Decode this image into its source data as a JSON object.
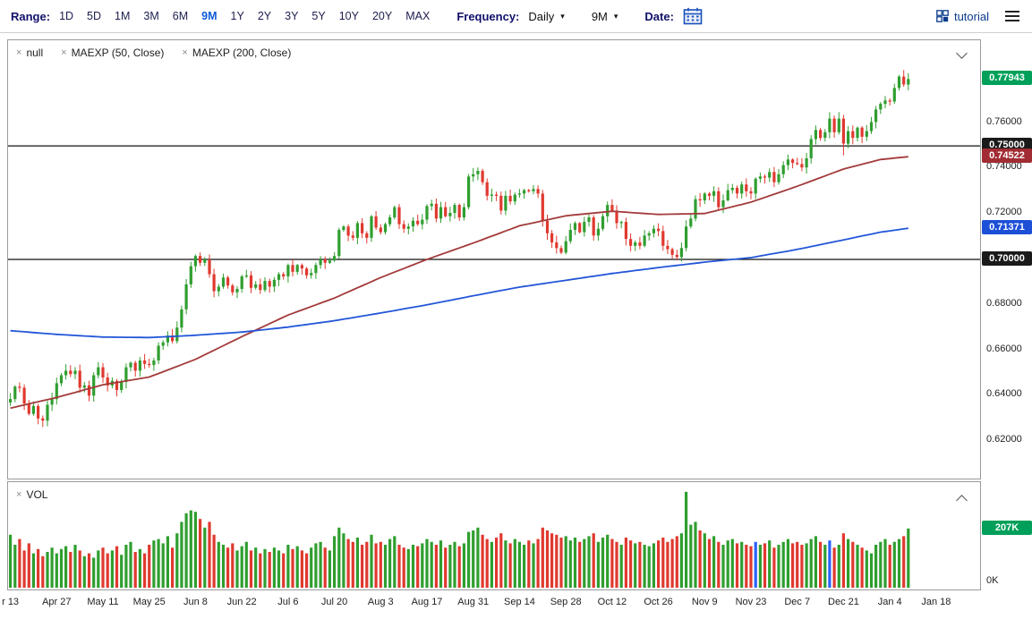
{
  "toolbar": {
    "range_label": "Range:",
    "range_options": [
      "1D",
      "5D",
      "1M",
      "3M",
      "6M",
      "9M",
      "1Y",
      "2Y",
      "3Y",
      "5Y",
      "10Y",
      "20Y",
      "MAX"
    ],
    "range_active": "9M",
    "frequency_label": "Frequency:",
    "frequency_value": "Daily",
    "period_value": "9M",
    "date_label": "Date:",
    "tutorial_label": "tutorial"
  },
  "price_panel": {
    "legend": [
      "null",
      "MAEXP (50, Close)",
      "MAEXP (200, Close)"
    ]
  },
  "volume_panel": {
    "legend": [
      "VOL"
    ],
    "zero_label": "0K",
    "last_volume_badge": "207K",
    "last_volume_badge_color": "#00a05a"
  },
  "axis": {
    "price_ticks": [
      "0.76000",
      "0.74000",
      "0.72000",
      "0.68000",
      "0.66000",
      "0.64000",
      "0.62000"
    ],
    "price_tick_values": [
      0.76,
      0.74,
      0.72,
      0.68,
      0.66,
      0.64,
      0.62
    ],
    "badges": [
      {
        "text": "0.77943",
        "value": 0.77943,
        "color": "#00a05a"
      },
      {
        "text": "0.75000",
        "value": 0.75,
        "color": "#1a1a1a"
      },
      {
        "text": "0.74522",
        "value": 0.74522,
        "color": "#a12c34"
      },
      {
        "text": "0.71371",
        "value": 0.71371,
        "color": "#1d4fd7"
      },
      {
        "text": "0.70000",
        "value": 0.7,
        "color": "#1a1a1a"
      }
    ]
  },
  "chart_data": {
    "type": "candlestick",
    "title": "",
    "xlabel": "",
    "ylabel": "",
    "x_tick_labels": [
      "r 13",
      "Apr 27",
      "May 11",
      "May 25",
      "Jun 8",
      "Jun 22",
      "Jul 6",
      "Jul 20",
      "Aug 3",
      "Aug 17",
      "Aug 31",
      "Sep 14",
      "Sep 28",
      "Oct 12",
      "Oct 26",
      "Nov 9",
      "Nov 23",
      "Dec 7",
      "Dec 21",
      "Jan 4",
      "Jan 18"
    ],
    "x_tick_slots": [
      0,
      10,
      20,
      30,
      40,
      50,
      60,
      70,
      80,
      90,
      100,
      110,
      120,
      130,
      140,
      150,
      160,
      170,
      180,
      190,
      200
    ],
    "total_slots": 210,
    "y_min": 0.6035,
    "y_max": 0.7965,
    "hlines": [
      0.75,
      0.7
    ],
    "last_price": 0.77943,
    "first_open": 0.637,
    "closes": [
      0.6385,
      0.644,
      0.6435,
      0.6365,
      0.632,
      0.6355,
      0.63,
      0.629,
      0.636,
      0.6385,
      0.6455,
      0.649,
      0.651,
      0.6495,
      0.651,
      0.6435,
      0.6445,
      0.64,
      0.649,
      0.6525,
      0.648,
      0.6445,
      0.6465,
      0.6425,
      0.646,
      0.6525,
      0.6545,
      0.651,
      0.6555,
      0.654,
      0.6535,
      0.6555,
      0.662,
      0.6635,
      0.6665,
      0.664,
      0.67,
      0.678,
      0.689,
      0.697,
      0.7015,
      0.6985,
      0.7,
      0.6935,
      0.686,
      0.688,
      0.692,
      0.6885,
      0.6855,
      0.687,
      0.6925,
      0.693,
      0.6875,
      0.689,
      0.6865,
      0.6905,
      0.688,
      0.691,
      0.6935,
      0.6925,
      0.6975,
      0.6945,
      0.6975,
      0.696,
      0.693,
      0.694,
      0.6975,
      0.7,
      0.6985,
      0.6995,
      0.7015,
      0.713,
      0.7145,
      0.7105,
      0.7095,
      0.716,
      0.7115,
      0.7095,
      0.719,
      0.714,
      0.712,
      0.7155,
      0.7185,
      0.723,
      0.7155,
      0.7135,
      0.7145,
      0.717,
      0.7155,
      0.7175,
      0.7235,
      0.7245,
      0.718,
      0.723,
      0.719,
      0.7205,
      0.724,
      0.7185,
      0.723,
      0.7365,
      0.7375,
      0.739,
      0.734,
      0.728,
      0.7285,
      0.728,
      0.7215,
      0.728,
      0.7255,
      0.7285,
      0.729,
      0.7305,
      0.73,
      0.731,
      0.729,
      0.717,
      0.7115,
      0.7075,
      0.705,
      0.703,
      0.708,
      0.713,
      0.716,
      0.712,
      0.7165,
      0.7185,
      0.7105,
      0.7135,
      0.719,
      0.724,
      0.7215,
      0.716,
      0.7165,
      0.709,
      0.706,
      0.7075,
      0.706,
      0.7105,
      0.7115,
      0.7135,
      0.7125,
      0.706,
      0.7045,
      0.702,
      0.701,
      0.705,
      0.7145,
      0.718,
      0.7265,
      0.726,
      0.729,
      0.728,
      0.73,
      0.723,
      0.726,
      0.7305,
      0.7315,
      0.729,
      0.733,
      0.73,
      0.729,
      0.7355,
      0.7365,
      0.736,
      0.7385,
      0.734,
      0.7375,
      0.7415,
      0.744,
      0.7425,
      0.742,
      0.7405,
      0.7445,
      0.753,
      0.757,
      0.7535,
      0.756,
      0.762,
      0.756,
      0.762,
      0.751,
      0.7565,
      0.7535,
      0.758,
      0.754,
      0.7565,
      0.7605,
      0.766,
      0.7685,
      0.77,
      0.7695,
      0.7755,
      0.7805,
      0.777,
      0.77943
    ],
    "volumes_k": [
      185,
      150,
      170,
      130,
      155,
      120,
      135,
      110,
      125,
      140,
      120,
      135,
      145,
      125,
      150,
      130,
      110,
      120,
      105,
      130,
      140,
      120,
      130,
      145,
      115,
      150,
      160,
      125,
      135,
      120,
      150,
      165,
      170,
      155,
      180,
      140,
      190,
      230,
      260,
      270,
      265,
      240,
      210,
      230,
      185,
      160,
      150,
      140,
      155,
      130,
      145,
      160,
      130,
      140,
      120,
      135,
      125,
      140,
      130,
      120,
      150,
      135,
      145,
      130,
      120,
      140,
      155,
      160,
      140,
      130,
      180,
      210,
      190,
      170,
      160,
      175,
      150,
      160,
      185,
      155,
      160,
      150,
      170,
      180,
      150,
      140,
      135,
      150,
      145,
      155,
      170,
      160,
      150,
      165,
      140,
      150,
      160,
      145,
      155,
      195,
      200,
      210,
      185,
      170,
      160,
      175,
      190,
      165,
      155,
      170,
      160,
      150,
      165,
      155,
      170,
      210,
      200,
      190,
      185,
      175,
      180,
      165,
      175,
      160,
      170,
      180,
      190,
      160,
      175,
      185,
      170,
      160,
      150,
      175,
      165,
      155,
      160,
      150,
      145,
      155,
      165,
      175,
      160,
      170,
      180,
      190,
      335,
      220,
      230,
      200,
      190,
      170,
      180,
      160,
      150,
      165,
      170,
      155,
      160,
      150,
      145,
      160,
      150,
      155,
      165,
      140,
      150,
      160,
      170,
      155,
      160,
      150,
      155,
      170,
      180,
      160,
      150,
      165,
      140,
      150,
      190,
      170,
      160,
      150,
      140,
      130,
      120,
      150,
      160,
      170,
      150,
      160,
      170,
      180,
      207
    ],
    "neutral_volume_indices": [
      161,
      177
    ],
    "wick_overrides": {
      "7": {
        "low": 0.6262
      },
      "40": {
        "high": 0.7022
      },
      "101": {
        "high": 0.7405
      },
      "144": {
        "low": 0.6996
      },
      "180": {
        "low": 0.7458
      },
      "194": {
        "high": 0.782
      }
    },
    "series": [
      {
        "name": "MAEXP (50, Close)",
        "color": "#a33b3b",
        "anchors": [
          [
            0,
            0.6345
          ],
          [
            10,
            0.6392
          ],
          [
            20,
            0.6448
          ],
          [
            30,
            0.6482
          ],
          [
            40,
            0.656
          ],
          [
            50,
            0.666
          ],
          [
            60,
            0.6755
          ],
          [
            70,
            0.683
          ],
          [
            80,
            0.692
          ],
          [
            90,
            0.7
          ],
          [
            100,
            0.7072
          ],
          [
            110,
            0.7148
          ],
          [
            120,
            0.7192
          ],
          [
            130,
            0.7212
          ],
          [
            140,
            0.7198
          ],
          [
            150,
            0.7202
          ],
          [
            160,
            0.7252
          ],
          [
            170,
            0.7322
          ],
          [
            180,
            0.7398
          ],
          [
            188,
            0.744
          ],
          [
            194,
            0.74522
          ]
        ]
      },
      {
        "name": "MAEXP (200, Close)",
        "color": "#2356d8",
        "anchors": [
          [
            0,
            0.6686
          ],
          [
            10,
            0.667
          ],
          [
            20,
            0.6658
          ],
          [
            30,
            0.6656
          ],
          [
            40,
            0.6666
          ],
          [
            50,
            0.668
          ],
          [
            60,
            0.6702
          ],
          [
            70,
            0.673
          ],
          [
            80,
            0.6764
          ],
          [
            90,
            0.68
          ],
          [
            100,
            0.684
          ],
          [
            110,
            0.6878
          ],
          [
            120,
            0.6908
          ],
          [
            130,
            0.6938
          ],
          [
            140,
            0.6964
          ],
          [
            150,
            0.6988
          ],
          [
            160,
            0.7008
          ],
          [
            170,
            0.7044
          ],
          [
            180,
            0.7086
          ],
          [
            188,
            0.712
          ],
          [
            194,
            0.71371
          ]
        ]
      }
    ],
    "colors": {
      "up": "#2f9e2f",
      "down": "#e0392f",
      "neutral": "#2962ff"
    }
  }
}
